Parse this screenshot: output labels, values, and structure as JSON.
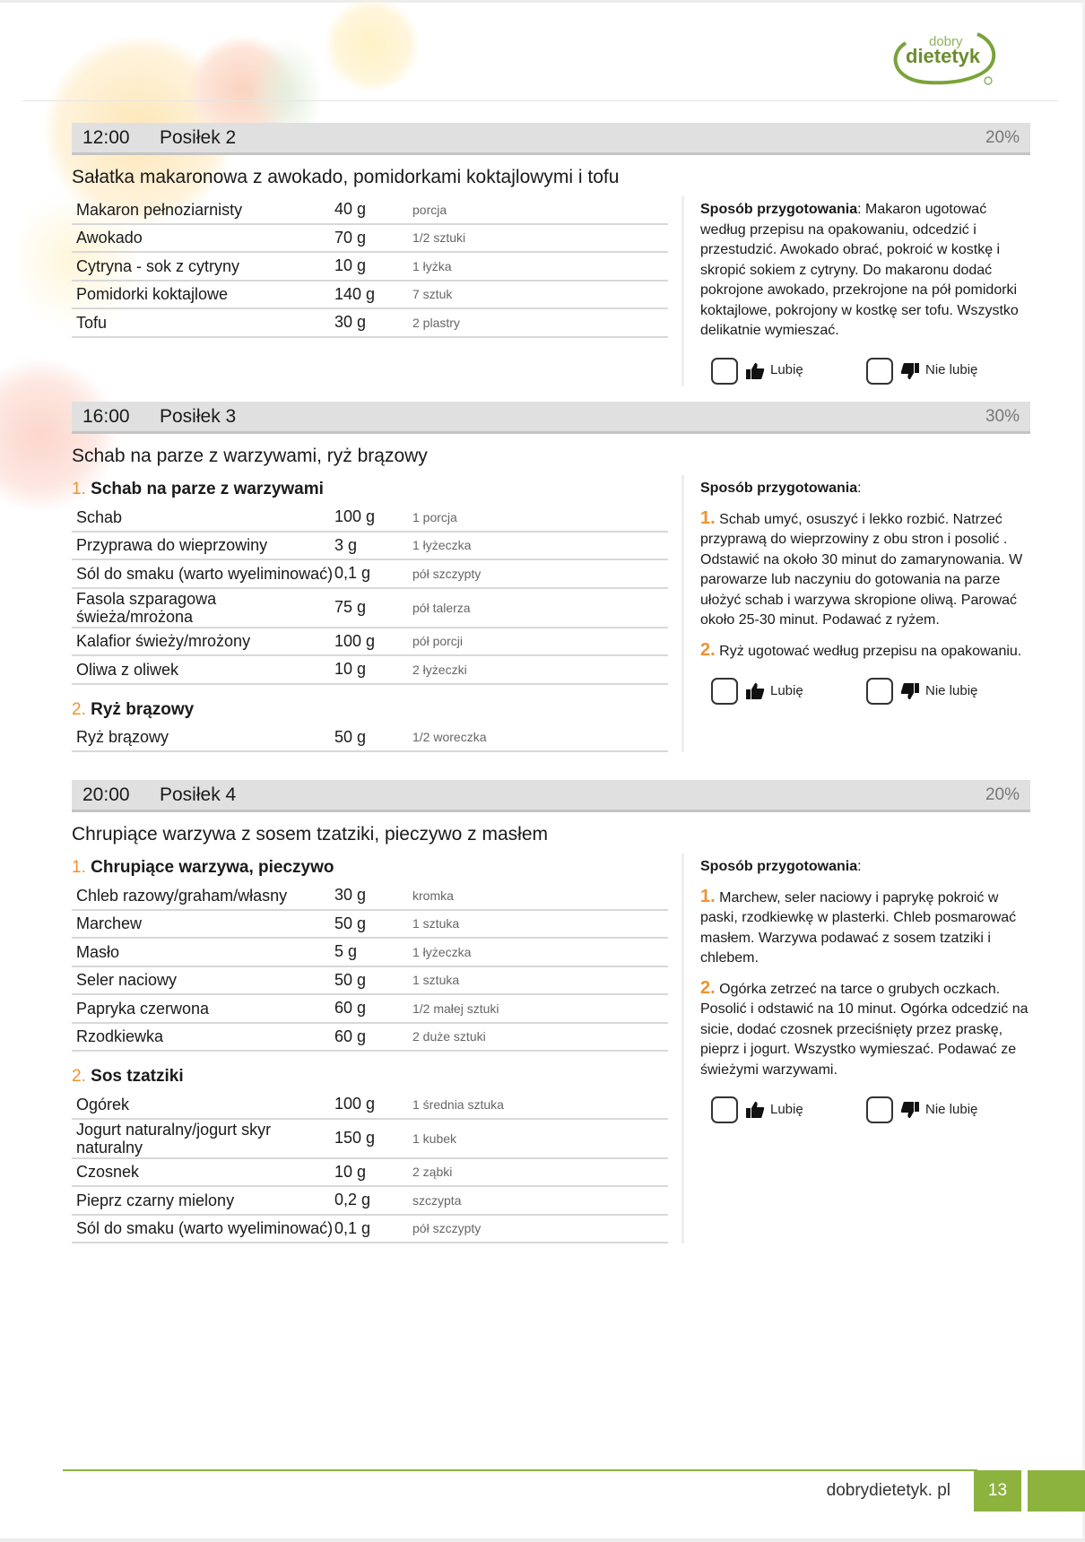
{
  "brand": {
    "logo_text_top": "dobry",
    "logo_text_main": "dietetyk",
    "green": "#8db33f",
    "accent_orange": "#f0922f"
  },
  "meals": [
    {
      "time": "12:00",
      "label": "Posiłek 2",
      "percent": "20%",
      "title": "Sałatka makaronowa z awokado, pomidorkami koktajlowymi i tofu",
      "groups": [
        {
          "number": "",
          "name": "",
          "ingredients": [
            {
              "name": "Makaron pełnoziarnisty",
              "amount": "40 g",
              "unit": "porcja"
            },
            {
              "name": "Awokado",
              "amount": "70 g",
              "unit": "1/2 sztuki"
            },
            {
              "name": "Cytryna - sok z cytryny",
              "amount": "10 g",
              "unit": "1 łyżka"
            },
            {
              "name": "Pomidorki koktajlowe",
              "amount": "140 g",
              "unit": "7 sztuk"
            },
            {
              "name": "Tofu",
              "amount": "30 g",
              "unit": "2 plastry"
            }
          ]
        }
      ],
      "method": {
        "label": "Sposób przygotowania",
        "steps": [
          {
            "number": "",
            "text": "Makaron ugotować według przepisu na opakowaniu, odcedzić i przestudzić. Awokado obrać, pokroić w kostkę i skropić sokiem z cytryny. Do makaronu dodać pokrojone awokado, przekrojone na pół pomidorki koktajlowe, pokrojony w kostkę ser tofu. Wszystko delikatnie wymieszać."
          }
        ]
      },
      "like_label": "Lubię",
      "dislike_label": "Nie lubię"
    },
    {
      "time": "16:00",
      "label": "Posiłek 3",
      "percent": "30%",
      "title": "Schab na parze z warzywami, ryż brązowy",
      "groups": [
        {
          "number": "1.",
          "name": "Schab na parze z warzywami",
          "ingredients": [
            {
              "name": "Schab",
              "amount": "100 g",
              "unit": "1 porcja"
            },
            {
              "name": "Przyprawa do wieprzowiny",
              "amount": "3 g",
              "unit": "1 łyżeczka"
            },
            {
              "name": "Sól do smaku (warto wyeliminować)",
              "amount": "0,1 g",
              "unit": "pół szczypty"
            },
            {
              "name": "Fasola szparagowa świeża/mrożona",
              "amount": "75 g",
              "unit": "pół talerza"
            },
            {
              "name": "Kalafior świeży/mrożony",
              "amount": "100 g",
              "unit": "pół porcji"
            },
            {
              "name": "Oliwa z oliwek",
              "amount": "10 g",
              "unit": "2 łyżeczki"
            }
          ]
        },
        {
          "number": "2.",
          "name": "Ryż brązowy",
          "ingredients": [
            {
              "name": "Ryż brązowy",
              "amount": "50 g",
              "unit": "1/2 woreczka"
            }
          ]
        }
      ],
      "method": {
        "label": "Sposób przygotowania",
        "steps": [
          {
            "number": "1.",
            "text": "Schab umyć, osuszyć i lekko rozbić. Natrzeć przyprawą do wieprzowiny z obu stron i posolić . Odstawić na około 30 minut do zamarynowania. W parowarze lub naczyniu do gotowania na parze ułożyć schab i warzywa skropione oliwą. Parować około 25-30 minut. Podawać z ryżem."
          },
          {
            "number": "2.",
            "text": "Ryż ugotować według przepisu na opakowaniu."
          }
        ]
      },
      "like_label": "Lubię",
      "dislike_label": "Nie lubię"
    },
    {
      "time": "20:00",
      "label": "Posiłek 4",
      "percent": "20%",
      "title": "Chrupiące warzywa z sosem tzatziki, pieczywo z masłem",
      "groups": [
        {
          "number": "1.",
          "name": "Chrupiące warzywa, pieczywo",
          "ingredients": [
            {
              "name": "Chleb razowy/graham/własny",
              "amount": "30 g",
              "unit": "kromka"
            },
            {
              "name": "Marchew",
              "amount": "50 g",
              "unit": "1 sztuka"
            },
            {
              "name": "Masło",
              "amount": "5 g",
              "unit": "1 łyżeczka"
            },
            {
              "name": "Seler naciowy",
              "amount": "50 g",
              "unit": "1 sztuka"
            },
            {
              "name": "Papryka czerwona",
              "amount": "60 g",
              "unit": "1/2 małej sztuki"
            },
            {
              "name": "Rzodkiewka",
              "amount": "60 g",
              "unit": "2 duże sztuki"
            }
          ]
        },
        {
          "number": "2.",
          "name": "Sos tzatziki",
          "ingredients": [
            {
              "name": "Ogórek",
              "amount": "100 g",
              "unit": "1 średnia sztuka"
            },
            {
              "name": "Jogurt naturalny/jogurt skyr naturalny",
              "amount": "150 g",
              "unit": "1 kubek"
            },
            {
              "name": "Czosnek",
              "amount": "10 g",
              "unit": "2 ząbki"
            },
            {
              "name": "Pieprz czarny mielony",
              "amount": "0,2 g",
              "unit": "szczypta"
            },
            {
              "name": "Sól do smaku (warto wyeliminować)",
              "amount": "0,1 g",
              "unit": "pół szczypty"
            }
          ]
        }
      ],
      "method": {
        "label": "Sposób przygotowania",
        "steps": [
          {
            "number": "1.",
            "text": "Marchew, seler naciowy i paprykę pokroić w paski, rzodkiewkę w plasterki. Chleb posmarować masłem. Warzywa podawać z sosem tzatziki i chlebem."
          },
          {
            "number": "2.",
            "text": "Ogórka zetrzeć na tarce o grubych oczkach. Posolić i odstawić na 10 minut. Ogórka odcedzić na sicie, dodać czosnek przeciśnięty przez praskę, pieprz i jogurt. Wszystko wymieszać. Podawać ze świeżymi warzywami."
          }
        ]
      },
      "like_label": "Lubię",
      "dislike_label": "Nie lubię"
    }
  ],
  "footer": {
    "site": "dobrydietetyk. pl",
    "page_number": "13"
  }
}
